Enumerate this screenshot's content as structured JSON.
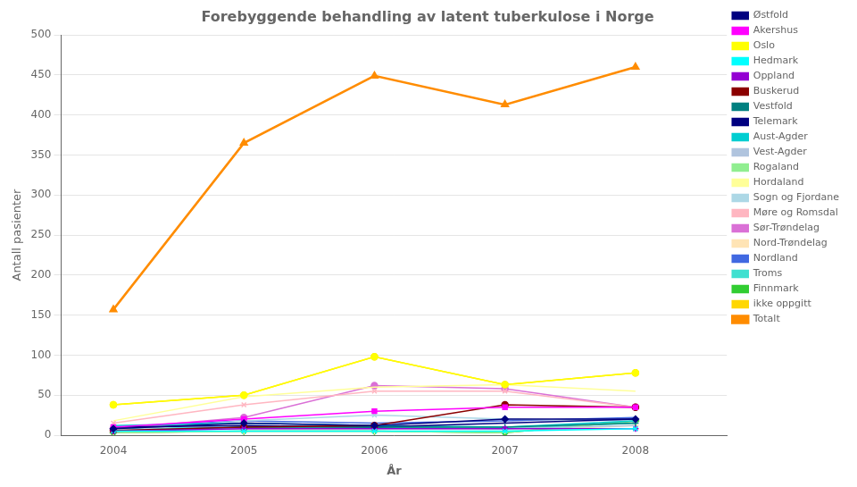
{
  "chart_data": {
    "type": "line",
    "title": "Forebyggende behandling av latent tuberkulose i Norge",
    "xlabel": "År",
    "ylabel": "Antall pasienter",
    "x": [
      2004,
      2005,
      2006,
      2007,
      2008
    ],
    "series": [
      {
        "name": "Østfold",
        "color": "#000080",
        "marker": "diamond",
        "values": [
          8,
          15,
          12,
          20,
          20
        ]
      },
      {
        "name": "Akershus",
        "color": "#FF00FF",
        "marker": "square",
        "values": [
          10,
          20,
          30,
          35,
          35
        ]
      },
      {
        "name": "Oslo",
        "color": "#FFFF00",
        "marker": "circle",
        "values": [
          38,
          50,
          98,
          63,
          78
        ]
      },
      {
        "name": "Hedmark",
        "color": "#00FFFF",
        "marker": "x",
        "values": [
          5,
          5,
          5,
          5,
          8
        ]
      },
      {
        "name": "Oppland",
        "color": "#9400D3",
        "marker": "star",
        "values": [
          5,
          8,
          8,
          8,
          8
        ]
      },
      {
        "name": "Buskerud",
        "color": "#8B0000",
        "marker": "circle",
        "values": [
          6,
          10,
          12,
          38,
          35
        ]
      },
      {
        "name": "Vestfold",
        "color": "#008080",
        "marker": "plus",
        "values": [
          5,
          10,
          10,
          10,
          15
        ]
      },
      {
        "name": "Telemark",
        "color": "#000080",
        "marker": "none",
        "values": [
          10,
          12,
          10,
          15,
          20
        ]
      },
      {
        "name": "Aust-Agder",
        "color": "#00CED1",
        "marker": "none",
        "values": [
          12,
          15,
          12,
          10,
          18
        ]
      },
      {
        "name": "Vest-Agder",
        "color": "#B0C4DE",
        "marker": "none",
        "values": [
          5,
          8,
          8,
          8,
          12
        ]
      },
      {
        "name": "Rogaland",
        "color": "#90EE90",
        "marker": "none",
        "values": [
          3,
          5,
          5,
          3,
          18
        ]
      },
      {
        "name": "Hordaland",
        "color": "#FFFF99",
        "marker": "none",
        "values": [
          18,
          48,
          60,
          63,
          55
        ]
      },
      {
        "name": "Sogn og Fjordane",
        "color": "#ADD8E6",
        "marker": "x",
        "values": [
          5,
          18,
          25,
          20,
          18
        ]
      },
      {
        "name": "Møre og Romsdal",
        "color": "#FFB6C1",
        "marker": "x",
        "values": [
          15,
          38,
          55,
          55,
          35
        ]
      },
      {
        "name": "Sør-Trøndelag",
        "color": "#DA70D6",
        "marker": "circle",
        "values": [
          8,
          22,
          62,
          58,
          35
        ]
      },
      {
        "name": "Nord-Trøndelag",
        "color": "#FFE4B5",
        "marker": "plus",
        "values": [
          3,
          5,
          5,
          5,
          12
        ]
      },
      {
        "name": "Nordland",
        "color": "#4169E1",
        "marker": "none",
        "values": [
          10,
          18,
          15,
          18,
          22
        ]
      },
      {
        "name": "Troms",
        "color": "#40E0D0",
        "marker": "none",
        "values": [
          8,
          10,
          10,
          8,
          15
        ]
      },
      {
        "name": "Finnmark",
        "color": "#32CD32",
        "marker": "diamond",
        "values": [
          3,
          5,
          5,
          3,
          18
        ]
      },
      {
        "name": "ikke oppgitt",
        "color": "#FFD700",
        "marker": "circle",
        "values": [
          38,
          50,
          98,
          63,
          78
        ]
      },
      {
        "name": "Totalt",
        "color": "#FF8C00",
        "marker": "triangle",
        "values": [
          157,
          365,
          449,
          413,
          460
        ]
      }
    ],
    "xlim": [
      2003.6,
      2008.7
    ],
    "xticks": [
      2004,
      2005,
      2006,
      2007,
      2008
    ],
    "ylim": [
      0,
      500
    ],
    "yticks": [
      0,
      50,
      100,
      150,
      200,
      250,
      300,
      350,
      400,
      450,
      500
    ],
    "grid": "y",
    "legend": "upper right"
  }
}
